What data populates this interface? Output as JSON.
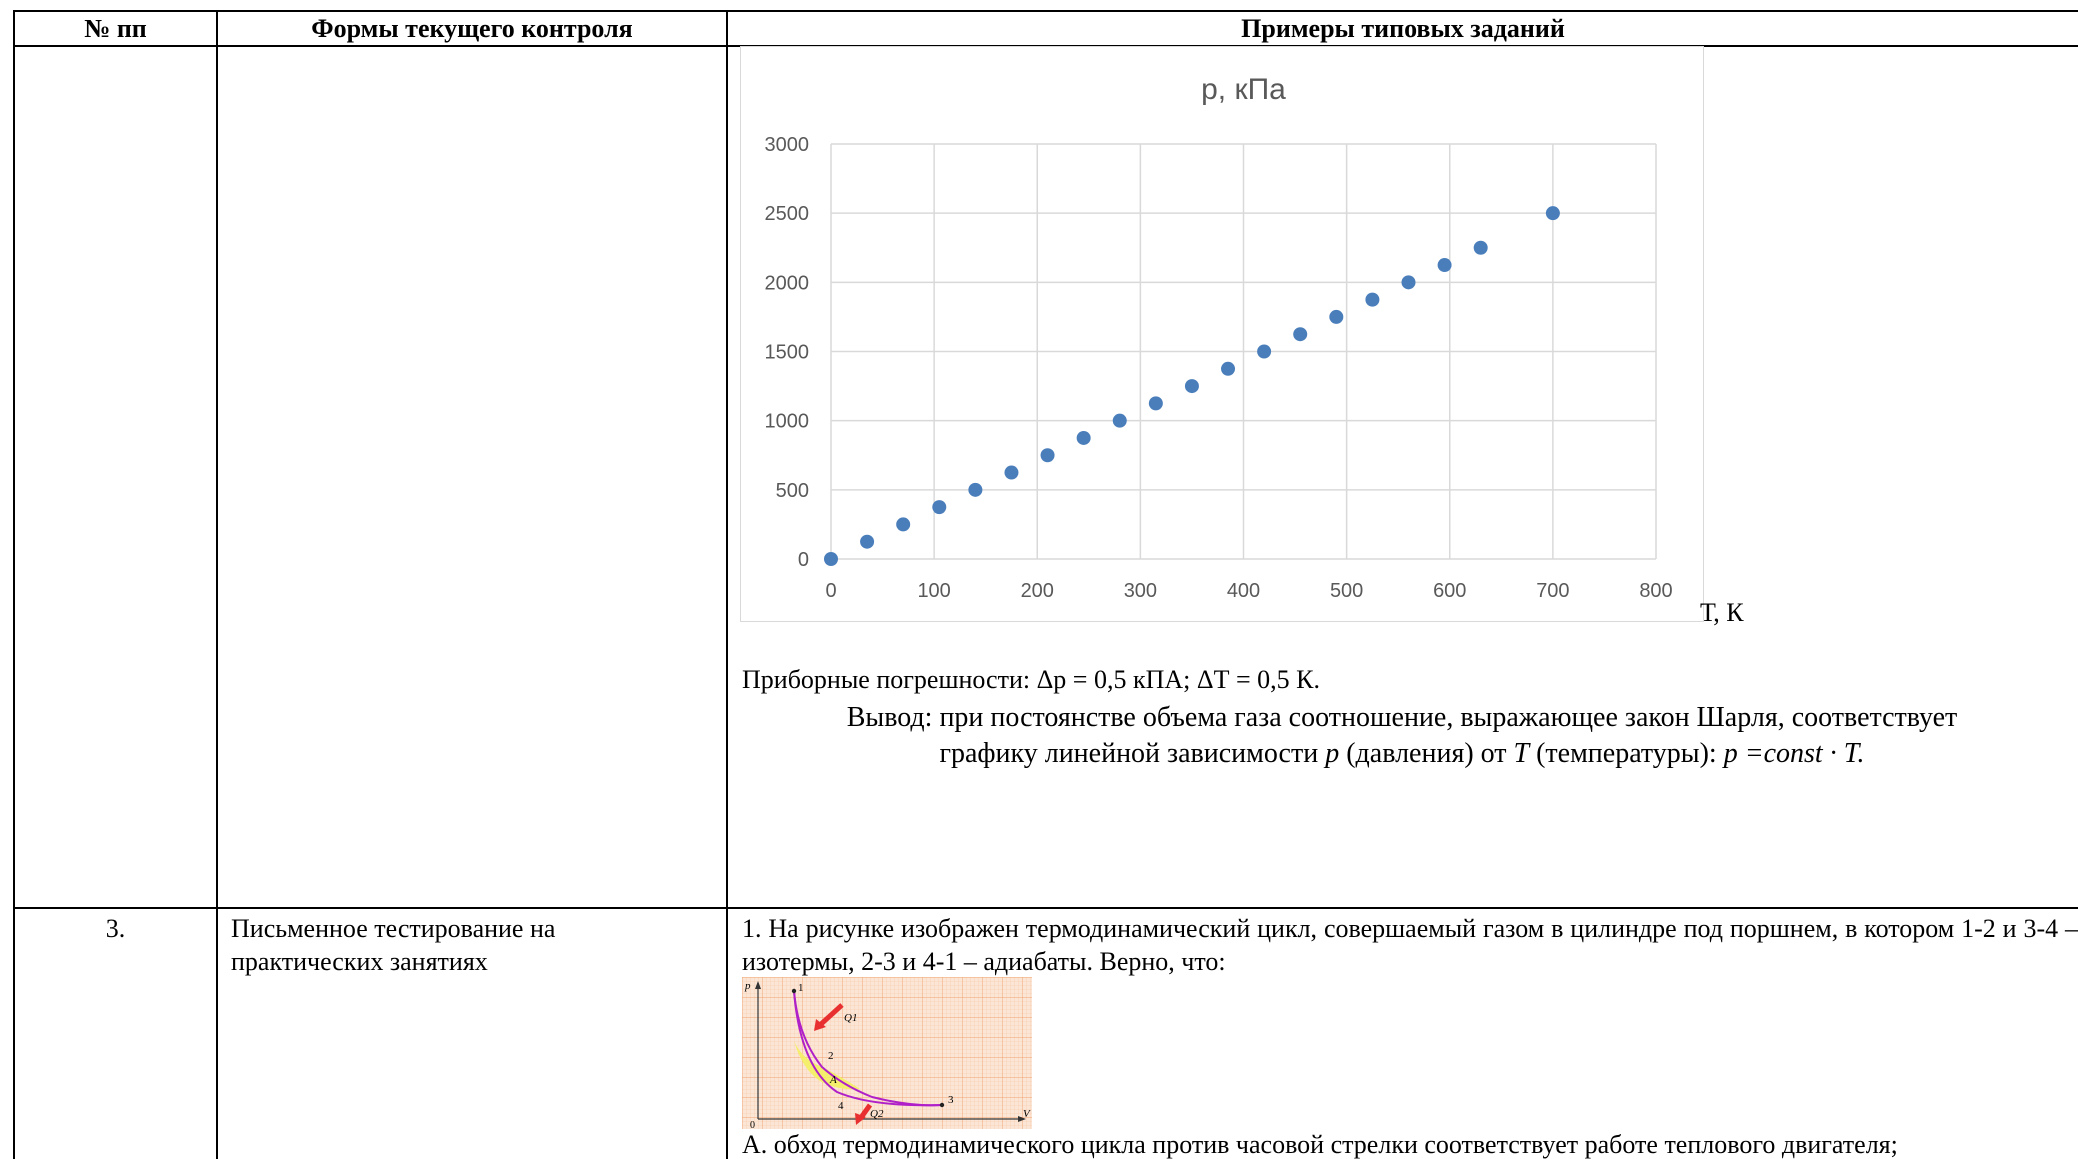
{
  "header": {
    "col_num": "№ пп",
    "col_forms": "Формы текущего контроля",
    "col_examples": "Примеры типовых заданий"
  },
  "chart_data": {
    "type": "scatter",
    "title": "р, кПа",
    "xlabel": "Т, К",
    "ylabel": "",
    "xlim": [
      0,
      800
    ],
    "ylim": [
      0,
      3000
    ],
    "x_ticks": [
      "0",
      "100",
      "200",
      "300",
      "400",
      "500",
      "600",
      "700",
      "800"
    ],
    "y_ticks": [
      "0",
      "500",
      "1000",
      "1500",
      "2000",
      "2500",
      "3000"
    ],
    "grid": true,
    "color": "#4a7ebb",
    "x": [
      0,
      35,
      70,
      105,
      140,
      175,
      210,
      245,
      280,
      315,
      350,
      385,
      420,
      455,
      490,
      525,
      560,
      595,
      630,
      700
    ],
    "y": [
      0,
      125,
      250,
      375,
      500,
      625,
      750,
      875,
      1000,
      1125,
      1250,
      1375,
      1500,
      1625,
      1750,
      1875,
      2000,
      2125,
      2250,
      2500
    ]
  },
  "row2": {
    "errors_text": "Приборные погрешности: Δр = 0,5 кПА; ΔТ = 0,5 К.",
    "conclusion_line1": "Вывод: при постоянстве объема газа соотношение, выражающее закон Шарля, соответствует",
    "conclusion_line2_a": "графику линейной зависимости ",
    "conclusion_line2_p": "р",
    "conclusion_line2_b": " (давления) от ",
    "conclusion_line2_T": "Т",
    "conclusion_line2_c": " (температуры): ",
    "conclusion_line2_formula": "р =const · Т."
  },
  "row3": {
    "number": "3.",
    "form": "Письменное тестирование на практических занятиях",
    "question": "1. На рисунке изображен термодинамический цикл, совершаемый газом в цилиндре под поршнем, в котором 1-2 и 3-4 – изотермы, 2-3 и 4-1 – адиабаты. Верно, что:",
    "answer_a": "А. обход термодинамического цикла против часовой стрелки соответствует работе теплового двигателя;"
  },
  "diagram": {
    "axis_p": "p",
    "axis_v": "V",
    "origin": "0",
    "labels": [
      "1",
      "2",
      "3",
      "4"
    ],
    "q1": "Q1",
    "q2": "Q2",
    "area_label": "A"
  }
}
